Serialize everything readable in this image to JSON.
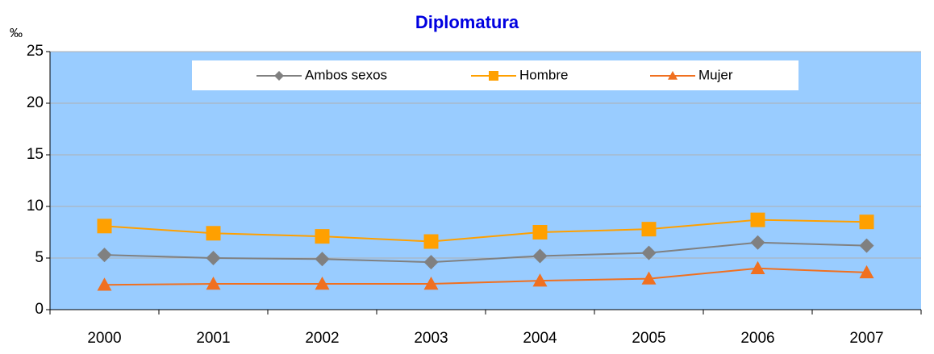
{
  "chart_data": {
    "type": "line",
    "title": "Diplomatura",
    "ylabel": "‰",
    "categories": [
      "2000",
      "2001",
      "2002",
      "2003",
      "2004",
      "2005",
      "2006",
      "2007"
    ],
    "series": [
      {
        "name": "Ambos sexos",
        "color": "#808080",
        "marker": "diamond",
        "values": [
          5.3,
          5.0,
          4.9,
          4.6,
          5.2,
          5.5,
          6.5,
          6.2
        ]
      },
      {
        "name": "Hombre",
        "color": "#ffa000",
        "marker": "square",
        "values": [
          8.1,
          7.4,
          7.1,
          6.6,
          7.5,
          7.8,
          8.7,
          8.5
        ]
      },
      {
        "name": "Mujer",
        "color": "#f07020",
        "marker": "triangle",
        "values": [
          2.4,
          2.5,
          2.5,
          2.5,
          2.8,
          3.0,
          4.0,
          3.6
        ]
      }
    ],
    "ylim": [
      0,
      25
    ],
    "yticks": [
      0,
      5,
      10,
      15,
      20,
      25
    ],
    "grid": true,
    "legend": "top"
  }
}
